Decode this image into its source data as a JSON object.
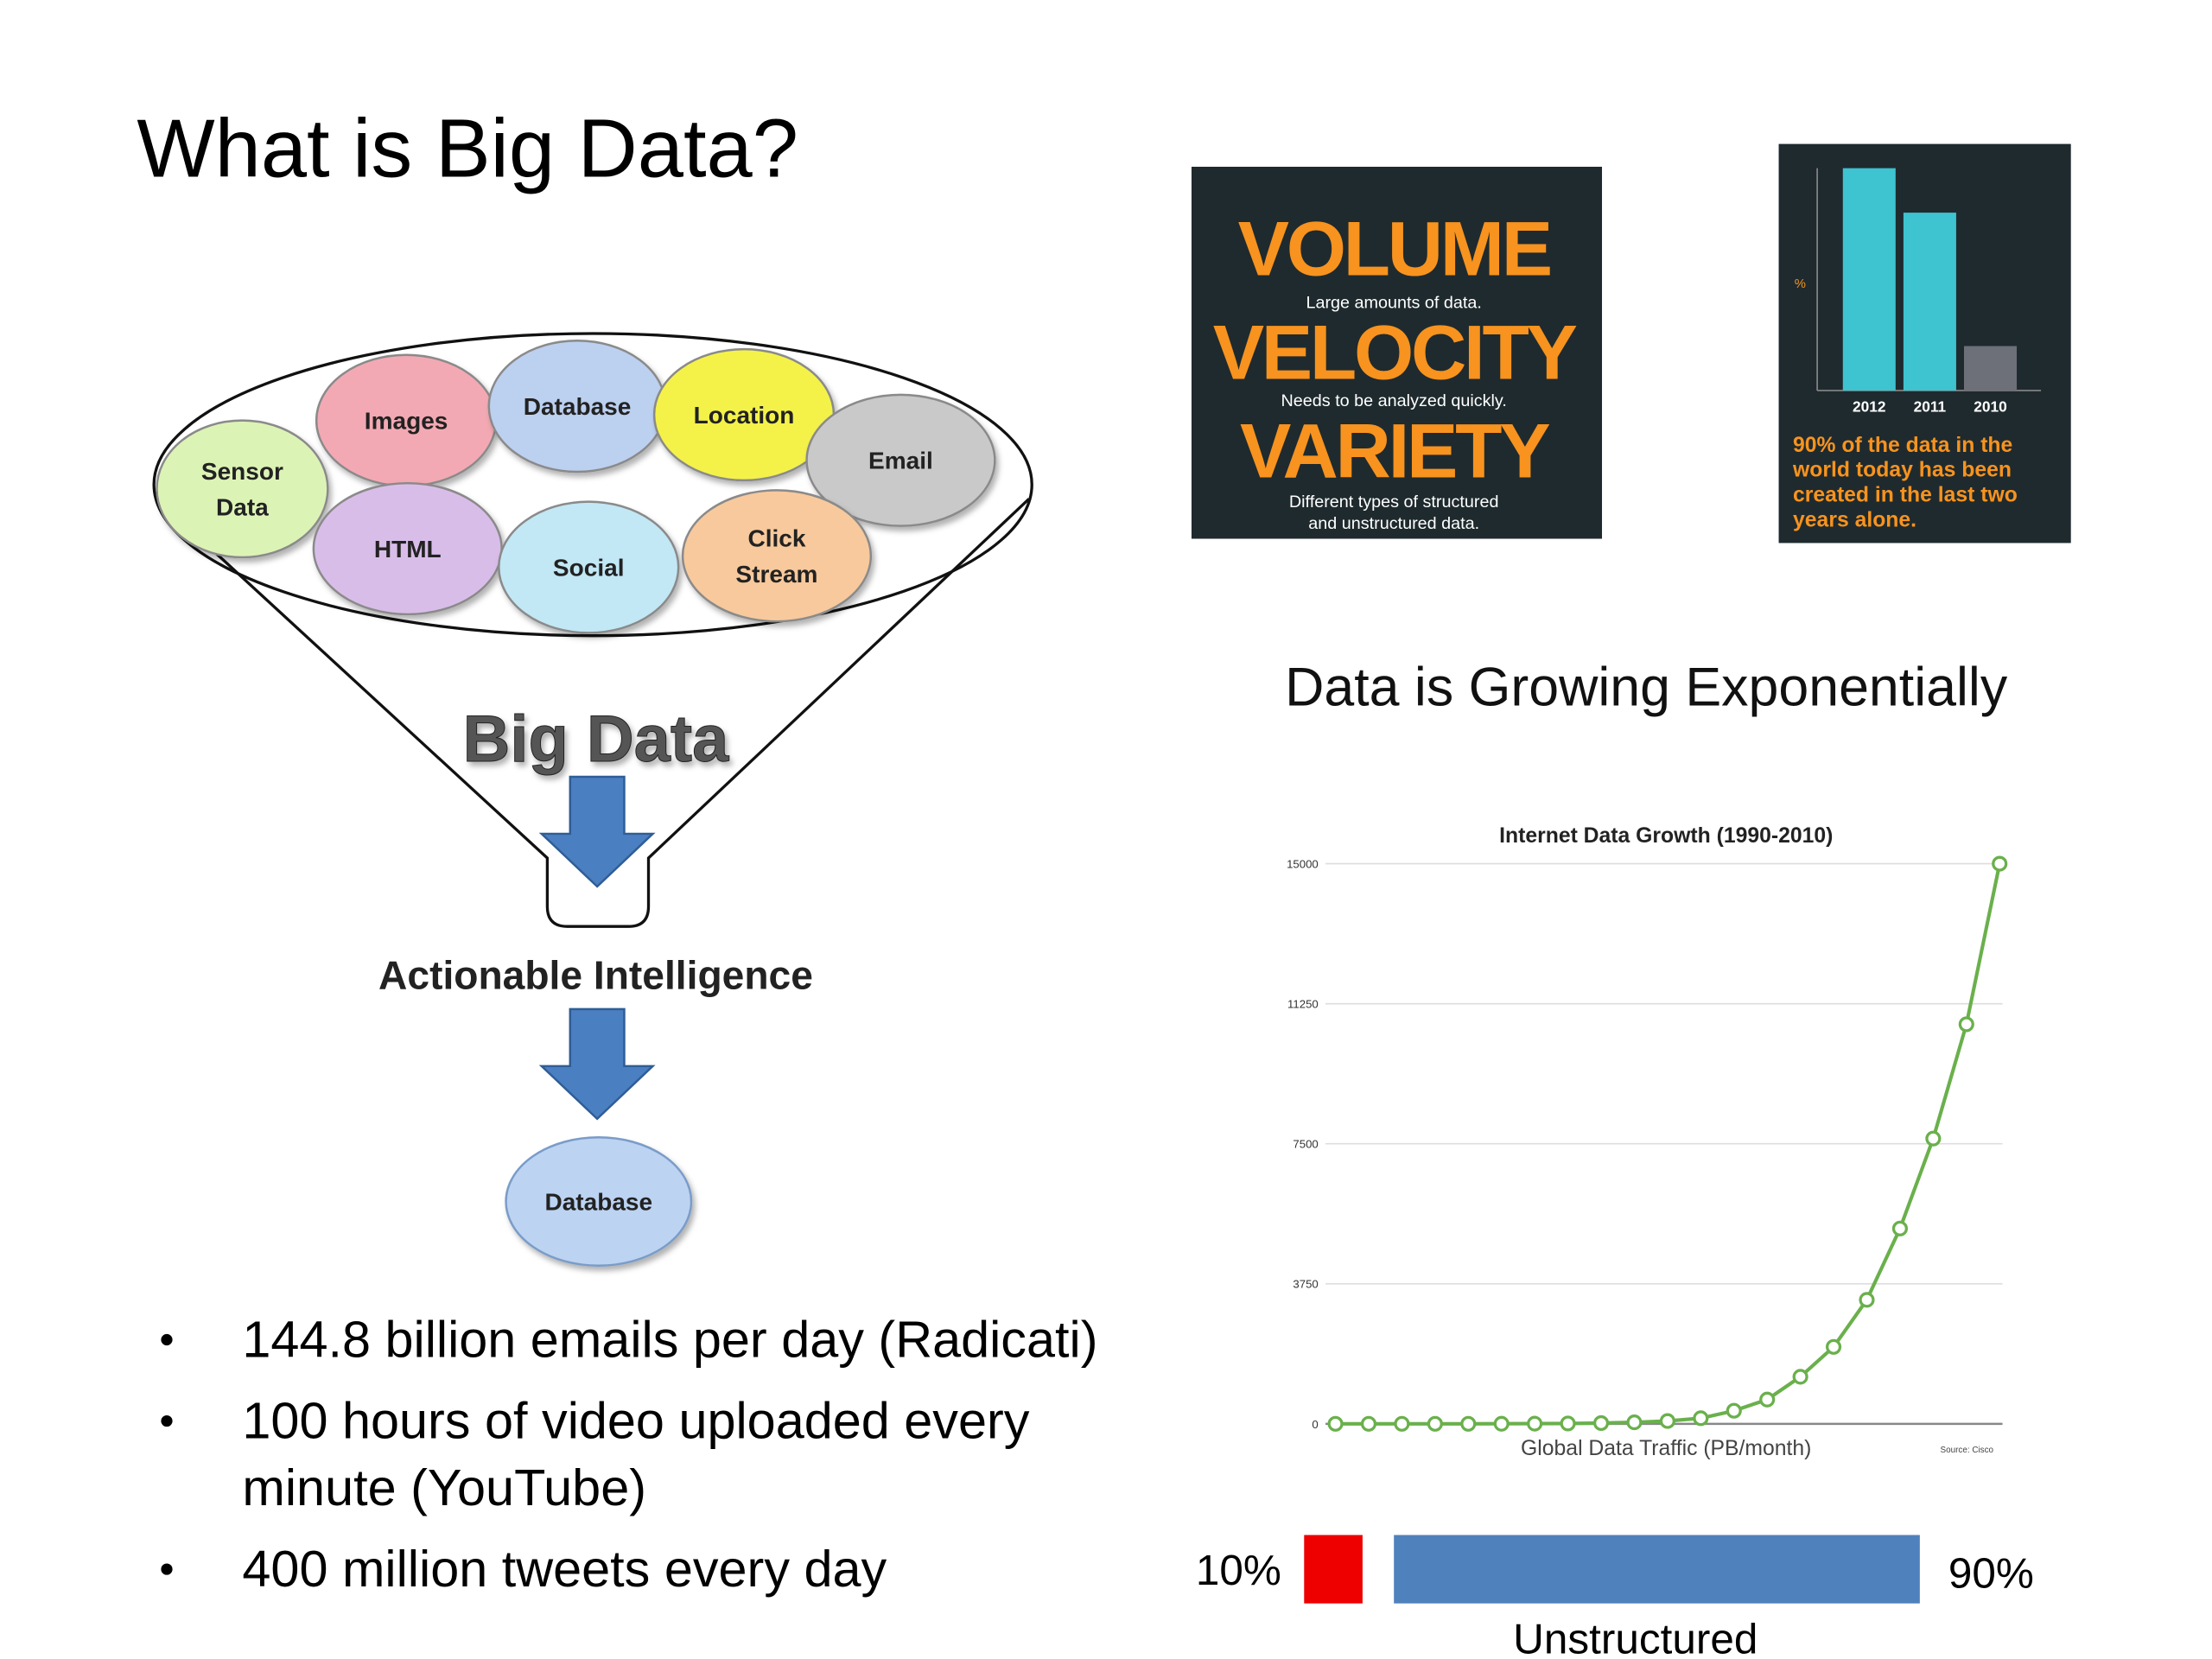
{
  "title": "What is Big Data?",
  "diagram": {
    "sources": [
      {
        "label": [
          "Sensor",
          "Data"
        ],
        "color": "#dcf3b6"
      },
      {
        "label": [
          "Images"
        ],
        "color": "#f3a9b3"
      },
      {
        "label": [
          "Database"
        ],
        "color": "#bcd0f0"
      },
      {
        "label": [
          "Location"
        ],
        "color": "#f4f24a"
      },
      {
        "label": [
          "Email"
        ],
        "color": "#c9c9c9"
      },
      {
        "label": [
          "HTML"
        ],
        "color": "#d9bde9"
      },
      {
        "label": [
          "Social"
        ],
        "color": "#c2e7f5"
      },
      {
        "label": [
          "Click",
          "Stream"
        ],
        "color": "#f7c99c"
      }
    ],
    "funnel_label": "Big Data",
    "output_label": "Actionable Intelligence",
    "destination": "Database"
  },
  "bullets": [
    [
      "144.8 billion emails per day (Radicati)"
    ],
    [
      "100 hours of video uploaded every",
      "minute (YouTube)"
    ],
    [
      "400 million tweets every day"
    ]
  ],
  "three_vs": [
    {
      "word": "VOLUME",
      "caption": [
        "Large amounts of data."
      ]
    },
    {
      "word": "VELOCITY",
      "caption": [
        "Needs to be analyzed quickly."
      ]
    },
    {
      "word": "VARIETY",
      "caption": [
        "Different types of structured",
        "and unstructured data."
      ]
    }
  ],
  "heading": "Data is Growing Exponentially",
  "chart_data": [
    {
      "type": "bar",
      "categories": [
        "2012",
        "2011",
        "2010"
      ],
      "values": [
        100,
        80,
        20
      ],
      "colors": [
        "#3ec3d0",
        "#3ec3d0",
        "#6d7079"
      ],
      "ylabel": "%",
      "ylim": [
        0,
        100
      ],
      "caption": [
        "90% of the data in the",
        "world today has been",
        "created in the last two",
        "years alone."
      ]
    },
    {
      "type": "line",
      "title": "Internet Data Growth (1990-2010)",
      "xlabel": "Global Data Traffic (PB/month)",
      "source": "Source: Cisco",
      "categories": [
        null,
        null,
        null,
        null,
        null,
        null,
        null,
        null,
        null,
        null,
        null,
        null,
        null,
        null,
        null,
        null,
        null,
        null,
        null,
        null,
        null
      ],
      "series": [
        {
          "color": "#6ab04c",
          "values": [
            0,
            0,
            0,
            0,
            1,
            2,
            5,
            10,
            20,
            40,
            75,
            150,
            350,
            650,
            1260,
            2060,
            3320,
            5230,
            7640,
            10700,
            15000
          ]
        }
      ],
      "ylim": [
        0,
        15000
      ],
      "yticks": [
        0,
        3750,
        7500,
        11250,
        15000
      ],
      "grid": true
    },
    {
      "type": "stacked-bar",
      "orientation": "horizontal",
      "xlim": [
        0,
        100
      ],
      "series": [
        {
          "color": "#ee0000",
          "values": [
            10
          ],
          "value_labels": [
            "10%"
          ]
        },
        {
          "name": "Unstructured",
          "color": "#4f81bd",
          "values": [
            90
          ],
          "value_labels": [
            "90%"
          ]
        }
      ]
    }
  ]
}
